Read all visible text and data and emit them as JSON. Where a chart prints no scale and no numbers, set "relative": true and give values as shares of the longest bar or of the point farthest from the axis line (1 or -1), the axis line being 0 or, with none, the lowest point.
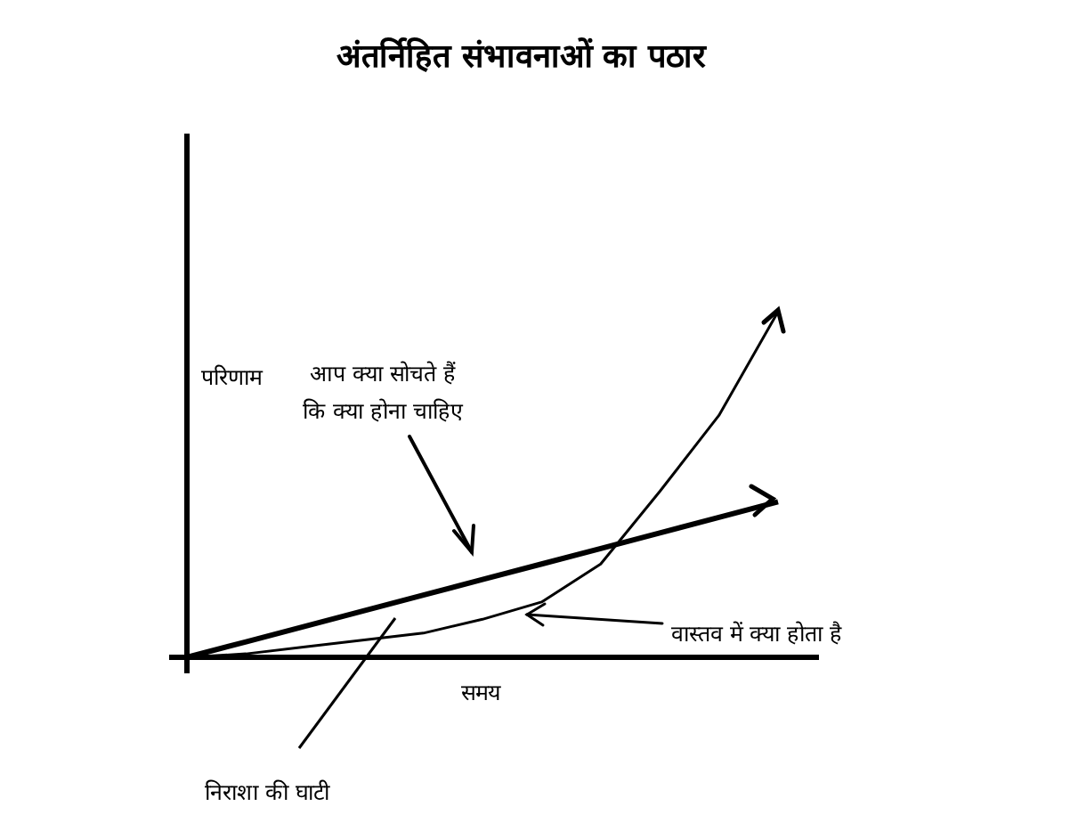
{
  "chart_data": {
    "type": "line",
    "title": "अंतर्निहित संभावनाओं का पठार",
    "xlabel": "समय",
    "ylabel": "परिणाम",
    "relative": true,
    "categories": [
      null,
      null,
      null,
      null,
      null,
      null,
      null,
      null,
      null,
      null,
      null
    ],
    "series": [
      {
        "color": "#000000",
        "values": [
          0,
          0.045,
          0.09,
          0.135,
          0.18,
          0.225,
          0.27,
          0.315,
          0.36,
          0.405,
          0.45
        ]
      },
      {
        "color": "#000000",
        "values": [
          0,
          0.01,
          0.03,
          0.05,
          0.07,
          0.11,
          0.16,
          0.27,
          0.48,
          0.7,
          1
        ]
      }
    ],
    "annotations": [
      "आप क्या सोचते हैं\nकि क्या होना चाहिए",
      "वास्तव में क्या होता है",
      "निराशा की घाटी"
    ]
  }
}
